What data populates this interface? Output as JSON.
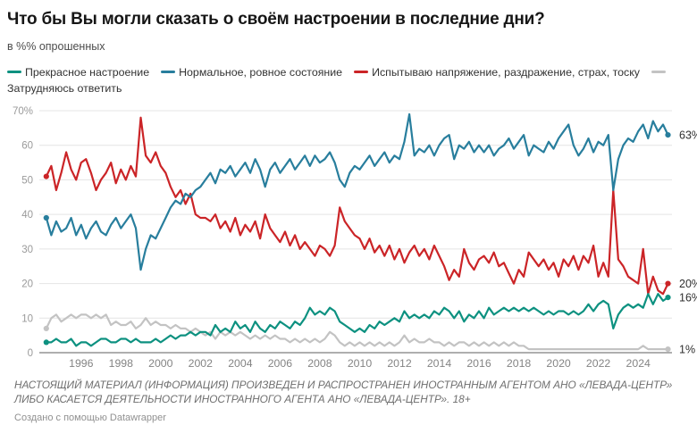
{
  "header": {
    "title": "Что бы Вы могли сказать о своём настроении в последние дни?",
    "subtitle": "в %% опрошенных"
  },
  "legend": {
    "items": [
      {
        "id": "excellent",
        "label": "Прекрасное настроение",
        "color": "#0d9180"
      },
      {
        "id": "normal",
        "label": "Нормальное, ровное состояние",
        "color": "#287e9d"
      },
      {
        "id": "tension",
        "label": "Испытываю напряжение, раздражение, страх, тоску",
        "color": "#cb2427"
      },
      {
        "id": "difficult",
        "label": "Затрудняюсь ответить",
        "color": "#c3c3c3"
      }
    ]
  },
  "chart_data": {
    "type": "line",
    "title": "Что бы Вы могли сказать о своём настроении в последние дни?",
    "subtitle": "в %% опрошенных",
    "xlabel": "",
    "ylabel": "",
    "grid": "horizontal",
    "legend_position": "top",
    "x_start": 1994.25,
    "x_step": 0.25,
    "x_range": [
      1993.9,
      2025.7
    ],
    "x_ticks": [
      1996,
      1998,
      2000,
      2002,
      2004,
      2006,
      2008,
      2010,
      2012,
      2014,
      2016,
      2018,
      2020,
      2022,
      2024
    ],
    "y_ticks": [
      0,
      10,
      20,
      30,
      40,
      50,
      60,
      70
    ],
    "y_tick_labels": [
      "0",
      "10",
      "20",
      "30",
      "40",
      "50",
      "60",
      "70%"
    ],
    "ylim": [
      0,
      70
    ],
    "series": [
      {
        "id": "excellent",
        "name": "Прекрасное настроение",
        "color": "#0d9180",
        "end_label": "16%",
        "values": [
          3,
          3,
          4,
          3,
          3,
          4,
          2,
          3,
          3,
          2,
          3,
          4,
          4,
          3,
          3,
          4,
          4,
          3,
          4,
          3,
          3,
          3,
          4,
          3,
          4,
          5,
          4,
          5,
          5,
          6,
          5,
          6,
          6,
          5,
          8,
          6,
          7,
          6,
          9,
          7,
          8,
          6,
          9,
          7,
          6,
          8,
          7,
          9,
          8,
          7,
          9,
          8,
          10,
          13,
          11,
          12,
          11,
          13,
          12,
          9,
          8,
          7,
          6,
          7,
          6,
          8,
          7,
          9,
          8,
          9,
          10,
          9,
          12,
          10,
          11,
          10,
          11,
          10,
          12,
          11,
          13,
          12,
          10,
          12,
          9,
          11,
          10,
          12,
          10,
          13,
          11,
          12,
          13,
          12,
          13,
          12,
          13,
          12,
          13,
          12,
          11,
          12,
          11,
          12,
          12,
          11,
          12,
          11,
          12,
          14,
          12,
          14,
          15,
          14,
          7,
          11,
          13,
          14,
          13,
          14,
          13,
          17,
          14,
          17,
          15,
          16
        ]
      },
      {
        "id": "normal",
        "name": "Нормальное, ровное состояние",
        "color": "#287e9d",
        "end_label": "63%",
        "values": [
          39,
          34,
          38,
          35,
          36,
          39,
          34,
          37,
          33,
          36,
          38,
          35,
          34,
          37,
          39,
          36,
          38,
          40,
          36,
          24,
          30,
          34,
          33,
          36,
          39,
          42,
          44,
          43,
          46,
          45,
          47,
          48,
          50,
          52,
          49,
          53,
          52,
          54,
          51,
          53,
          55,
          52,
          56,
          53,
          48,
          53,
          55,
          52,
          54,
          56,
          53,
          55,
          57,
          54,
          57,
          55,
          56,
          58,
          55,
          50,
          48,
          52,
          54,
          53,
          55,
          57,
          54,
          56,
          58,
          55,
          57,
          56,
          61,
          69,
          57,
          59,
          58,
          60,
          57,
          60,
          62,
          63,
          56,
          60,
          59,
          61,
          58,
          60,
          58,
          60,
          57,
          59,
          60,
          62,
          59,
          61,
          63,
          57,
          60,
          59,
          58,
          61,
          59,
          62,
          64,
          66,
          60,
          57,
          59,
          62,
          58,
          61,
          60,
          63,
          47,
          56,
          60,
          62,
          61,
          64,
          66,
          62,
          67,
          64,
          66,
          63
        ]
      },
      {
        "id": "tension",
        "name": "Испытываю напряжение, раздражение, страх, тоску",
        "color": "#cb2427",
        "end_label": "20%",
        "values": [
          51,
          54,
          47,
          52,
          58,
          53,
          50,
          55,
          56,
          52,
          47,
          50,
          52,
          55,
          49,
          53,
          50,
          54,
          51,
          68,
          57,
          55,
          58,
          54,
          52,
          48,
          45,
          47,
          43,
          46,
          40,
          39,
          39,
          38,
          40,
          36,
          38,
          35,
          39,
          34,
          37,
          35,
          38,
          33,
          40,
          36,
          34,
          32,
          35,
          31,
          34,
          30,
          32,
          30,
          28,
          31,
          30,
          28,
          31,
          42,
          38,
          36,
          34,
          33,
          30,
          33,
          29,
          31,
          28,
          31,
          27,
          30,
          26,
          29,
          31,
          28,
          30,
          27,
          31,
          28,
          25,
          21,
          24,
          22,
          30,
          26,
          24,
          27,
          28,
          26,
          29,
          25,
          26,
          23,
          20,
          24,
          22,
          29,
          27,
          25,
          27,
          24,
          26,
          22,
          27,
          25,
          28,
          24,
          28,
          26,
          31,
          22,
          26,
          22,
          47,
          27,
          25,
          22,
          21,
          20,
          30,
          17,
          22,
          18,
          17,
          20
        ]
      },
      {
        "id": "difficult",
        "name": "Затрудняюсь ответить",
        "color": "#c3c3c3",
        "end_label": "1%",
        "values": [
          7,
          10,
          11,
          9,
          10,
          11,
          10,
          11,
          11,
          10,
          11,
          10,
          11,
          8,
          9,
          8,
          8,
          9,
          7,
          8,
          10,
          8,
          9,
          8,
          8,
          7,
          8,
          7,
          7,
          6,
          7,
          6,
          5,
          6,
          4,
          6,
          5,
          6,
          5,
          6,
          5,
          4,
          5,
          4,
          5,
          4,
          5,
          4,
          4,
          3,
          4,
          3,
          4,
          3,
          4,
          3,
          4,
          6,
          5,
          3,
          2,
          3,
          2,
          3,
          2,
          3,
          2,
          3,
          2,
          3,
          2,
          3,
          5,
          3,
          4,
          3,
          3,
          4,
          3,
          3,
          2,
          3,
          2,
          3,
          3,
          2,
          3,
          2,
          3,
          2,
          3,
          2,
          3,
          2,
          3,
          2,
          2,
          1,
          1,
          1,
          1,
          1,
          1,
          1,
          1,
          1,
          1,
          1,
          1,
          1,
          1,
          1,
          1,
          1,
          1,
          1,
          1,
          1,
          1,
          1,
          2,
          1,
          1,
          1,
          1,
          1
        ]
      }
    ]
  },
  "footer": {
    "disclaimer": "НАСТОЯЩИЙ МАТЕРИАЛ (ИНФОРМАЦИЯ) ПРОИЗВЕДЕН И РАСПРОСТРАНЕН ИНОСТРАННЫМ АГЕНТОМ АНО «ЛЕВАДА-ЦЕНТР» ЛИБО КАСАЕТСЯ ДЕЯТЕЛЬНОСТИ ИНОСТРАННОГО АГЕНТА АНО «ЛЕВАДА-ЦЕНТР». 18+",
    "credit": "Создано с помощью Datawrapper"
  }
}
